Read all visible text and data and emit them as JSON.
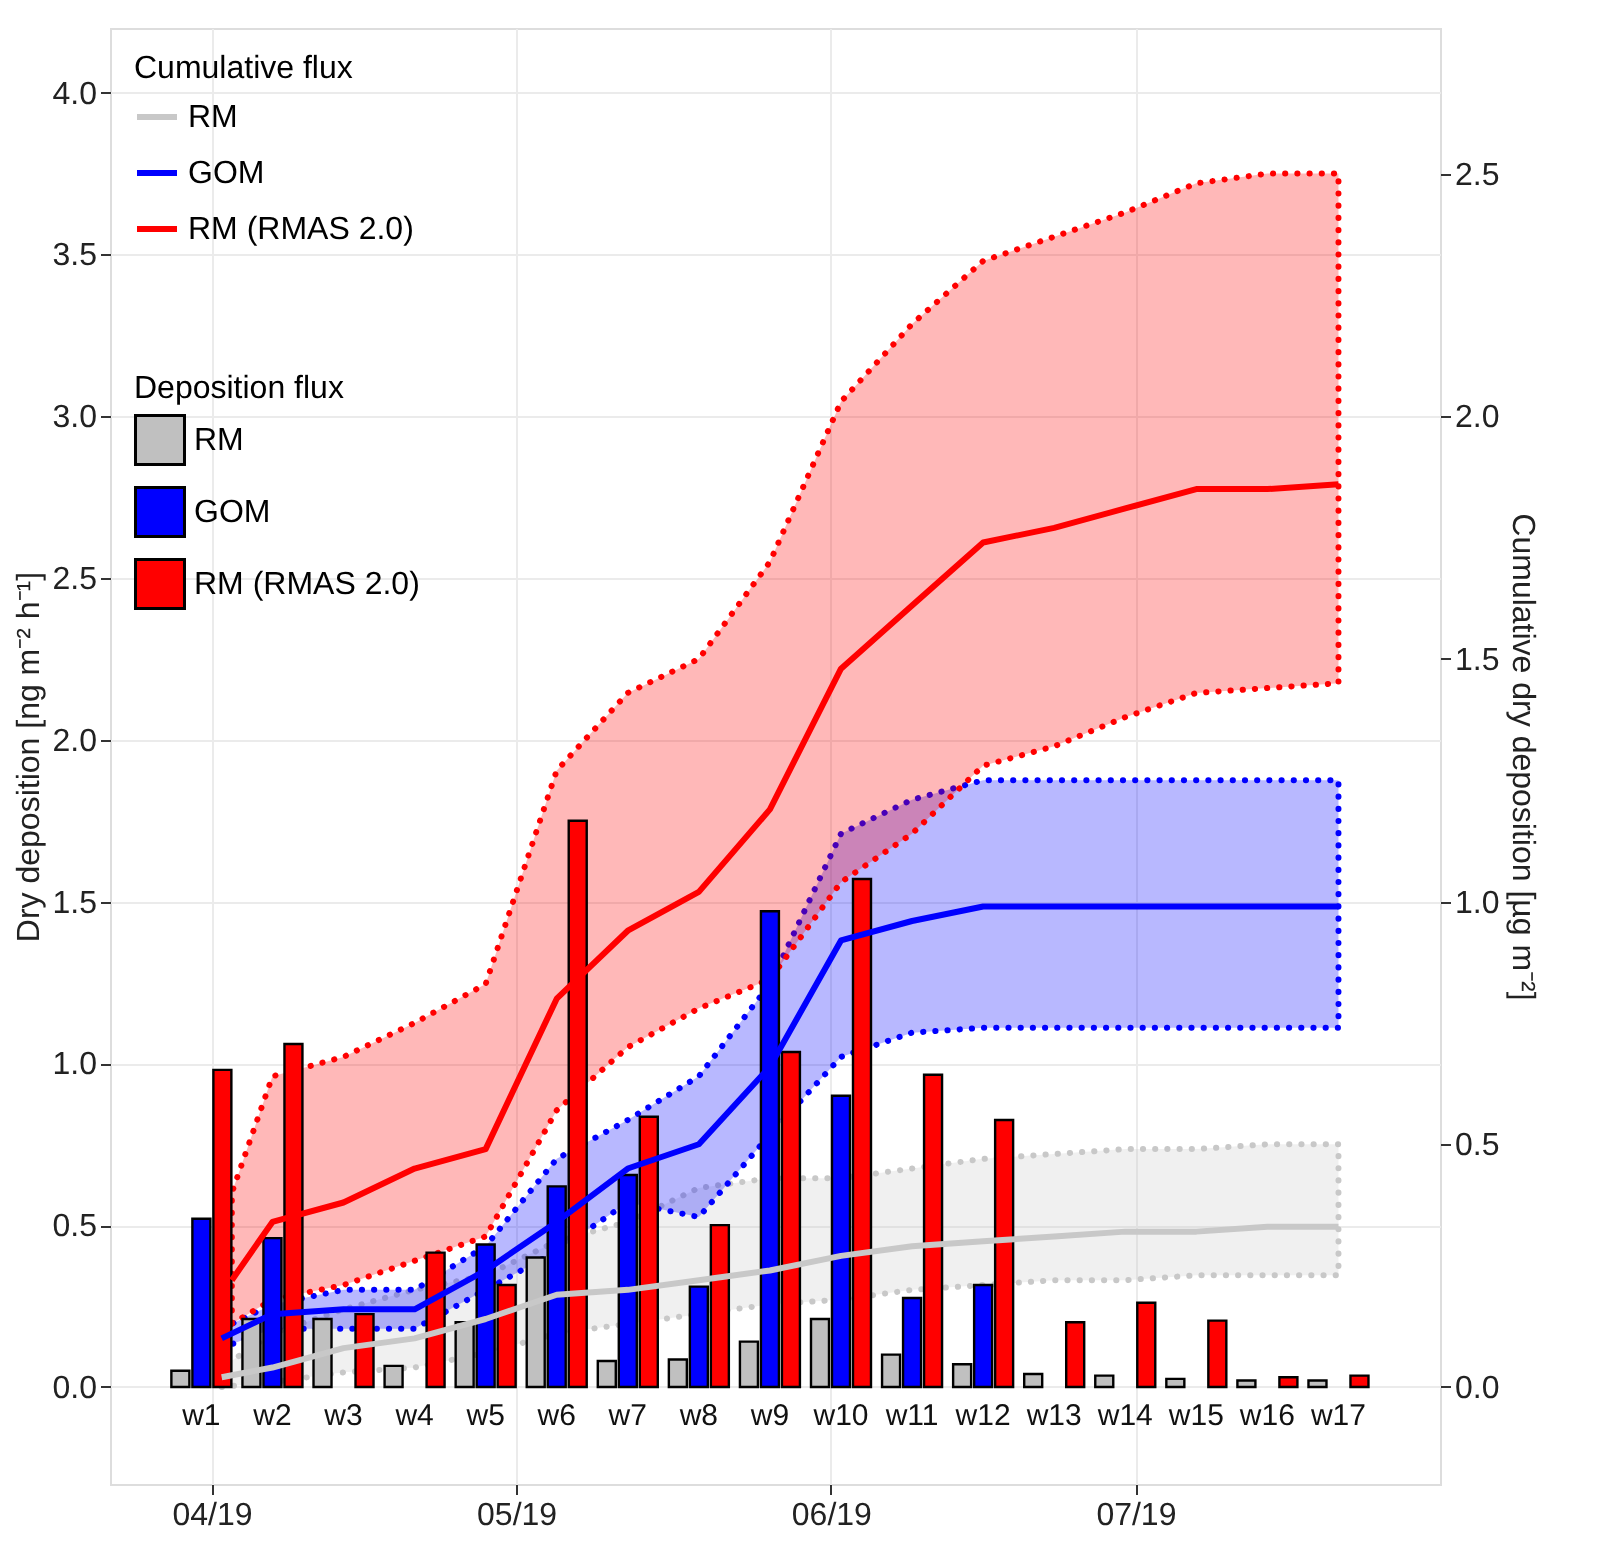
{
  "chart_data": {
    "type": "bar",
    "ylabel": "Dry deposition [ng m⁻² h⁻¹]",
    "y2label": "Cumulative dry deposition [µg m⁻²]",
    "legend_title": [
      "Cumulative flux",
      "Deposition flux"
    ],
    "legend": "top left",
    "grid": true,
    "xlim": [
      "2019-03-22",
      "2019-07-31"
    ],
    "xticks": [
      {
        "value": "2019-04-01",
        "label": "04/19"
      },
      {
        "value": "2019-05-01",
        "label": "05/19"
      },
      {
        "value": "2019-06-01",
        "label": "06/19"
      },
      {
        "value": "2019-07-01",
        "label": "07/19"
      }
    ],
    "ylim": [
      -0.3,
      4.2
    ],
    "yticks": [
      {
        "value": 0,
        "label": "0.0"
      },
      {
        "value": 0.5,
        "label": "0.5"
      },
      {
        "value": 1,
        "label": "1.0"
      },
      {
        "value": 1.5,
        "label": "1.5"
      },
      {
        "value": 2,
        "label": "2.0"
      },
      {
        "value": 2.5,
        "label": "2.5"
      },
      {
        "value": 3,
        "label": "3.0"
      },
      {
        "value": 3.5,
        "label": "3.5"
      },
      {
        "value": 4,
        "label": "4.0"
      }
    ],
    "y2lim": [
      -0.2,
      2.8
    ],
    "y2ticks": [
      {
        "value": 0,
        "label": "0.0"
      },
      {
        "value": 0.5,
        "label": "0.5"
      },
      {
        "value": 1,
        "label": "1.0"
      },
      {
        "value": 1.5,
        "label": "1.5"
      },
      {
        "value": 2,
        "label": "2.0"
      },
      {
        "value": 2.5,
        "label": "2.5"
      }
    ],
    "x": [
      "2019-03-31",
      "2019-04-07",
      "2019-04-14",
      "2019-04-21",
      "2019-04-28",
      "2019-05-05",
      "2019-05-12",
      "2019-05-19",
      "2019-05-26",
      "2019-06-02",
      "2019-06-09",
      "2019-06-16",
      "2019-06-23",
      "2019-06-30",
      "2019-07-07",
      "2019-07-14",
      "2019-07-21"
    ],
    "series": [
      {
        "name": "RM",
        "color": "#c0c0c0",
        "values": [
          0.05,
          0.21,
          0.21,
          0.065,
          0.2,
          0.4,
          0.08,
          0.085,
          0.14,
          0.21,
          0.1,
          0.07,
          0.04,
          0.035,
          0.025,
          0.02,
          0.02
        ]
      },
      {
        "name": "GOM",
        "color": "#0000ff",
        "values": [
          0.52,
          0.46,
          null,
          null,
          0.44,
          0.62,
          0.655,
          0.31,
          1.47,
          0.9,
          0.275,
          0.315,
          null,
          null,
          null,
          null,
          null
        ]
      },
      {
        "name": "RM (RMAS 2.0)",
        "color": "#ff0000",
        "values": [
          0.98,
          1.06,
          0.225,
          0.415,
          0.315,
          1.75,
          0.835,
          0.5,
          1.035,
          1.57,
          0.965,
          0.825,
          0.2,
          0.26,
          0.205,
          0.03,
          0.035
        ]
      },
      {
        "type": "line",
        "axis": "y2",
        "name": "RM",
        "color": "#c8c8c8",
        "line_style": "solid",
        "x": [
          "2019-04-02",
          "2019-04-07",
          "2019-04-14",
          "2019-04-21",
          "2019-04-28",
          "2019-05-05",
          "2019-05-12",
          "2019-05-19",
          "2019-05-26",
          "2019-06-02",
          "2019-06-09",
          "2019-06-16",
          "2019-06-23",
          "2019-06-30",
          "2019-07-07",
          "2019-07-14",
          "2019-07-21"
        ],
        "values": [
          0.02,
          0.04,
          0.08,
          0.1,
          0.14,
          0.19,
          0.2,
          0.22,
          0.24,
          0.27,
          0.29,
          0.3,
          0.31,
          0.32,
          0.32,
          0.33,
          0.33
        ],
        "lower": [
          0.0,
          0.01,
          0.03,
          0.04,
          0.07,
          0.11,
          0.13,
          0.15,
          0.17,
          0.18,
          0.2,
          0.21,
          0.22,
          0.22,
          0.23,
          0.23,
          0.23
        ],
        "upper": [
          0.04,
          0.11,
          0.16,
          0.2,
          0.23,
          0.3,
          0.34,
          0.41,
          0.43,
          0.43,
          0.45,
          0.47,
          0.48,
          0.49,
          0.49,
          0.5,
          0.5
        ]
      },
      {
        "type": "line",
        "axis": "y2",
        "name": "GOM",
        "color": "#0000ff",
        "line_style": "solid",
        "x": [
          "2019-04-02",
          "2019-04-07",
          "2019-04-14",
          "2019-04-21",
          "2019-04-28",
          "2019-05-05",
          "2019-05-12",
          "2019-05-19",
          "2019-05-26",
          "2019-06-02",
          "2019-06-09",
          "2019-06-16",
          "2019-06-23",
          "2019-06-30",
          "2019-07-07",
          "2019-07-14",
          "2019-07-21"
        ],
        "values": [
          0.1,
          0.15,
          0.16,
          0.16,
          0.24,
          0.34,
          0.45,
          0.5,
          0.66,
          0.92,
          0.96,
          0.99,
          0.99,
          0.99,
          0.99,
          0.99,
          0.99
        ],
        "lower": [
          0.08,
          0.12,
          0.12,
          0.12,
          0.2,
          0.28,
          0.38,
          0.35,
          0.52,
          0.68,
          0.73,
          0.74,
          0.74,
          0.74,
          0.74,
          0.74,
          0.74
        ],
        "upper": [
          0.12,
          0.17,
          0.2,
          0.2,
          0.29,
          0.47,
          0.55,
          0.64,
          0.83,
          1.14,
          1.21,
          1.25,
          1.25,
          1.25,
          1.25,
          1.25,
          1.25
        ]
      },
      {
        "type": "line",
        "axis": "y2",
        "name": "RM (RMAS 2.0)",
        "color": "#ff0000",
        "line_style": "solid",
        "x": [
          "2019-04-03",
          "2019-04-07",
          "2019-04-14",
          "2019-04-21",
          "2019-04-28",
          "2019-05-05",
          "2019-05-12",
          "2019-05-19",
          "2019-05-26",
          "2019-06-02",
          "2019-06-09",
          "2019-06-16",
          "2019-06-23",
          "2019-06-30",
          "2019-07-07",
          "2019-07-14",
          "2019-07-21"
        ],
        "values": [
          0.22,
          0.34,
          0.38,
          0.45,
          0.49,
          0.8,
          0.94,
          1.02,
          1.19,
          1.48,
          1.61,
          1.74,
          1.77,
          1.81,
          1.85,
          1.85,
          1.86
        ],
        "lower": [
          0.13,
          0.18,
          0.21,
          0.26,
          0.31,
          0.57,
          0.7,
          0.78,
          0.84,
          1.04,
          1.14,
          1.28,
          1.32,
          1.38,
          1.43,
          1.44,
          1.45
        ],
        "upper": [
          0.4,
          0.64,
          0.68,
          0.75,
          0.83,
          1.27,
          1.43,
          1.5,
          1.7,
          2.03,
          2.19,
          2.32,
          2.37,
          2.42,
          2.48,
          2.5,
          2.5
        ]
      }
    ],
    "annotations": [
      "w1",
      "w2",
      "w3",
      "w4",
      "w5",
      "w6",
      "w7",
      "w8",
      "w9",
      "w10",
      "w11",
      "w12",
      "w13",
      "w14",
      "w15",
      "w16",
      "w17"
    ]
  }
}
